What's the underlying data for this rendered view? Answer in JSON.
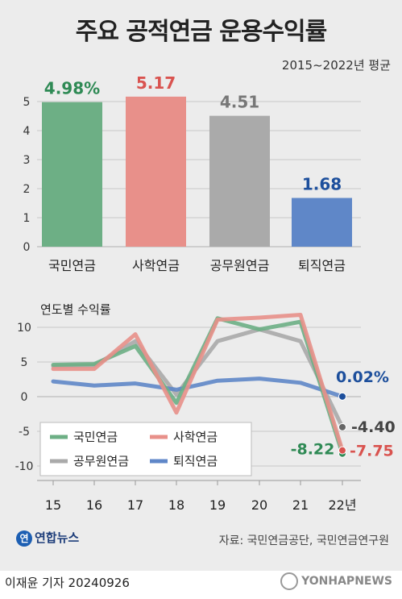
{
  "title": "주요 공적연금 운용수익률",
  "subtitle": "2015~2022년 평균",
  "colors": {
    "kookmin": "#6daf85",
    "sahak": "#e8908a",
    "gongmu": "#aaaaaa",
    "toejik": "#5f87c8"
  },
  "chart_data": [
    {
      "type": "bar",
      "categories": [
        "국민연금",
        "사학연금",
        "공무원연금",
        "퇴직연금"
      ],
      "values": [
        4.98,
        5.17,
        4.51,
        1.68
      ],
      "value_labels": [
        "4.98%",
        "5.17",
        "4.51",
        "1.68"
      ],
      "ylim": [
        0,
        5.5
      ],
      "yticks": [
        0,
        1,
        2,
        3,
        4,
        5
      ],
      "grid": true
    },
    {
      "type": "line",
      "title": "연도별 수익률",
      "x": [
        "15",
        "16",
        "17",
        "18",
        "19",
        "20",
        "21",
        "22년"
      ],
      "ylim": [
        -10.5,
        11.5
      ],
      "yticks": [
        -10,
        -5,
        0,
        5,
        10
      ],
      "grid": true,
      "legend_position": "bottom-left",
      "series": [
        {
          "name": "국민연금",
          "values": [
            4.6,
            4.7,
            7.3,
            -0.9,
            11.3,
            9.7,
            10.8,
            -8.22
          ]
        },
        {
          "name": "사학연금",
          "values": [
            4.0,
            4.0,
            9.0,
            -2.3,
            11.1,
            11.4,
            11.8,
            -7.75
          ]
        },
        {
          "name": "공무원연금",
          "values": [
            4.4,
            4.5,
            8.0,
            0.3,
            8.0,
            9.7,
            8.0,
            -4.4
          ]
        },
        {
          "name": "퇴직연금",
          "values": [
            2.2,
            1.6,
            1.9,
            1.0,
            2.3,
            2.6,
            2.0,
            0.02
          ]
        }
      ],
      "end_labels": [
        "-8.22",
        "-7.75",
        "-4.40",
        "0.02%"
      ]
    }
  ],
  "footer": {
    "logo": "연합뉴스",
    "source": "자료: 국민연금공단, 국민연금연구원"
  },
  "byline": "이재윤 기자  20240926",
  "watermark": "YONHAPNEWS"
}
